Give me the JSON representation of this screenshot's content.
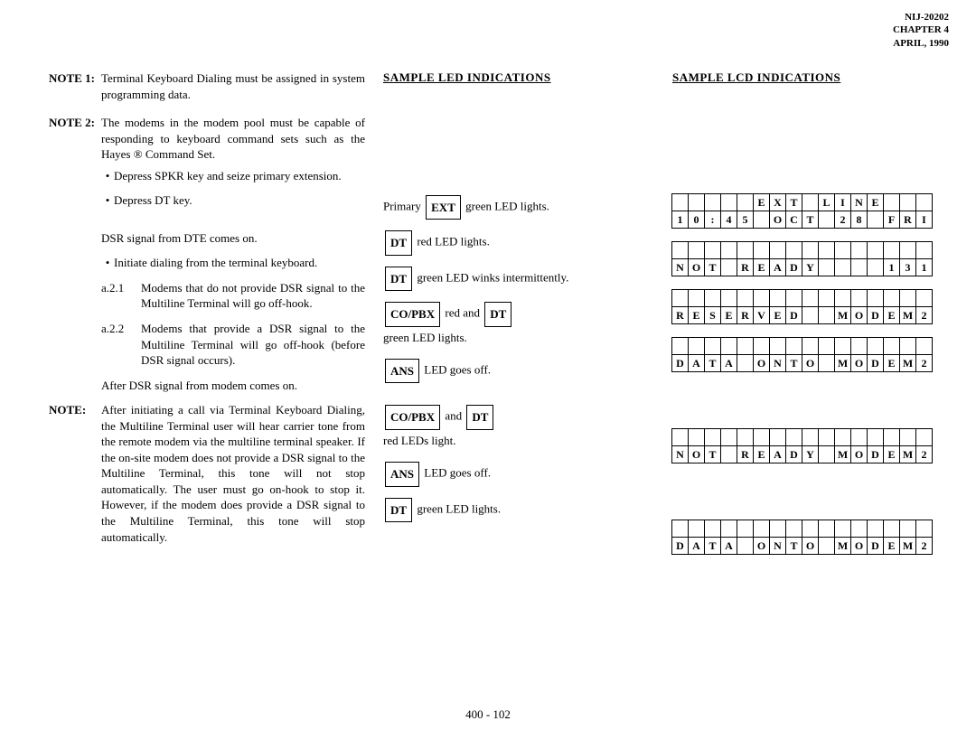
{
  "header": {
    "docid": "NIJ-20202",
    "chapter": "CHAPTER 4",
    "date": "APRIL, 1990"
  },
  "col1": {
    "note1_label": "NOTE 1:",
    "note1_body": "Terminal Keyboard Dialing must be assigned in system programming data.",
    "note2_label": "NOTE 2:",
    "note2_body": "The modems in the modem pool must be capable of responding to keyboard command sets such as the Hayes ® Command Set.",
    "bullet1": "Depress SPKR key and seize primary extension.",
    "bullet2": "Depress DT key.",
    "dsr_line": "DSR signal from DTE comes on.",
    "bullet3": "Initiate dialing from the terminal keyboard.",
    "a21_label": "a.2.1",
    "a21_body": "Modems that do not provide DSR signal to the Multiline Terminal will go off-hook.",
    "a22_label": "a.2.2",
    "a22_body": "Modems that provide a DSR signal to the Multiline Terminal will go off-hook (before DSR signal occurs).",
    "after_line": "After DSR signal from modem comes on.",
    "note3_label": "NOTE:",
    "note3_body": "After initiating a call via Terminal Keyboard Dialing, the Multiline Terminal user will hear carrier tone from the remote modem via the multiline terminal speaker. If the on-site modem does not provide a DSR signal to the Multiline Terminal, this tone will not stop automatically. The user must go on-hook to stop it. However, if the modem does provide a DSR signal to the Multiline Terminal, this tone will stop automatically."
  },
  "col2": {
    "title": "SAMPLE LED INDICATIONS",
    "line1_pre": "Primary ",
    "line1_box": "EXT",
    "line1_post": " green LED lights.",
    "line2_box": "DT",
    "line2_post": " red LED lights.",
    "line3_box": "DT",
    "line3_post": " green LED winks intermittently.",
    "line4_box1": "CO/PBX",
    "line4_mid": " red and ",
    "line4_box2": "DT",
    "line4_post": "green LED lights.",
    "line5_box": "ANS",
    "line5_post": " LED goes off.",
    "g2_line1_box1": "CO/PBX",
    "g2_line1_mid": " and ",
    "g2_line1_box2": "DT",
    "g2_line1_post": "red LEDs light.",
    "g2_line2_box": "ANS",
    "g2_line2_post": " LED goes off.",
    "g2_line3_box": "DT",
    "g2_line3_post": " green LED lights."
  },
  "col3": {
    "title": "SAMPLE LCD INDICATIONS",
    "lcd1_row1": [
      " ",
      " ",
      " ",
      " ",
      " ",
      "E",
      "X",
      "T",
      " ",
      "L",
      "I",
      "N",
      "E",
      " ",
      " ",
      " "
    ],
    "lcd1_row2": [
      "1",
      "0",
      ":",
      "4",
      "5",
      " ",
      "O",
      "C",
      "T",
      " ",
      "2",
      "8",
      " ",
      "F",
      "R",
      "I"
    ],
    "lcd2_row1": [
      " ",
      " ",
      " ",
      " ",
      " ",
      " ",
      " ",
      " ",
      " ",
      " ",
      " ",
      " ",
      " ",
      " ",
      " ",
      " "
    ],
    "lcd2_row2": [
      "N",
      "O",
      "T",
      " ",
      "R",
      "E",
      "A",
      "D",
      "Y",
      " ",
      " ",
      " ",
      " ",
      "1",
      "3",
      "1"
    ],
    "lcd3_row1": [
      " ",
      " ",
      " ",
      " ",
      " ",
      " ",
      " ",
      " ",
      " ",
      " ",
      " ",
      " ",
      " ",
      " ",
      " ",
      " "
    ],
    "lcd3_row2": [
      "R",
      "E",
      "S",
      "E",
      "R",
      "V",
      "E",
      "D",
      " ",
      " ",
      "M",
      "O",
      "D",
      "E",
      "M",
      "2"
    ],
    "lcd4_row1": [
      " ",
      " ",
      " ",
      " ",
      " ",
      " ",
      " ",
      " ",
      " ",
      " ",
      " ",
      " ",
      " ",
      " ",
      " ",
      " "
    ],
    "lcd4_row2": [
      "D",
      "A",
      "T",
      "A",
      " ",
      "O",
      "N",
      "T",
      "O",
      " ",
      "M",
      "O",
      "D",
      "E",
      "M",
      "2"
    ],
    "lcd5_row1": [
      " ",
      " ",
      " ",
      " ",
      " ",
      " ",
      " ",
      " ",
      " ",
      " ",
      " ",
      " ",
      " ",
      " ",
      " ",
      " "
    ],
    "lcd5_row2": [
      "N",
      "O",
      "T",
      " ",
      "R",
      "E",
      "A",
      "D",
      "Y",
      " ",
      "M",
      "O",
      "D",
      "E",
      "M",
      "2"
    ],
    "lcd6_row1": [
      " ",
      " ",
      " ",
      " ",
      " ",
      " ",
      " ",
      " ",
      " ",
      " ",
      " ",
      " ",
      " ",
      " ",
      " ",
      " "
    ],
    "lcd6_row2": [
      "D",
      "A",
      "T",
      "A",
      " ",
      "O",
      "N",
      "T",
      "O",
      " ",
      "M",
      "O",
      "D",
      "E",
      "M",
      "2"
    ]
  },
  "pagenum": "400 - 102"
}
